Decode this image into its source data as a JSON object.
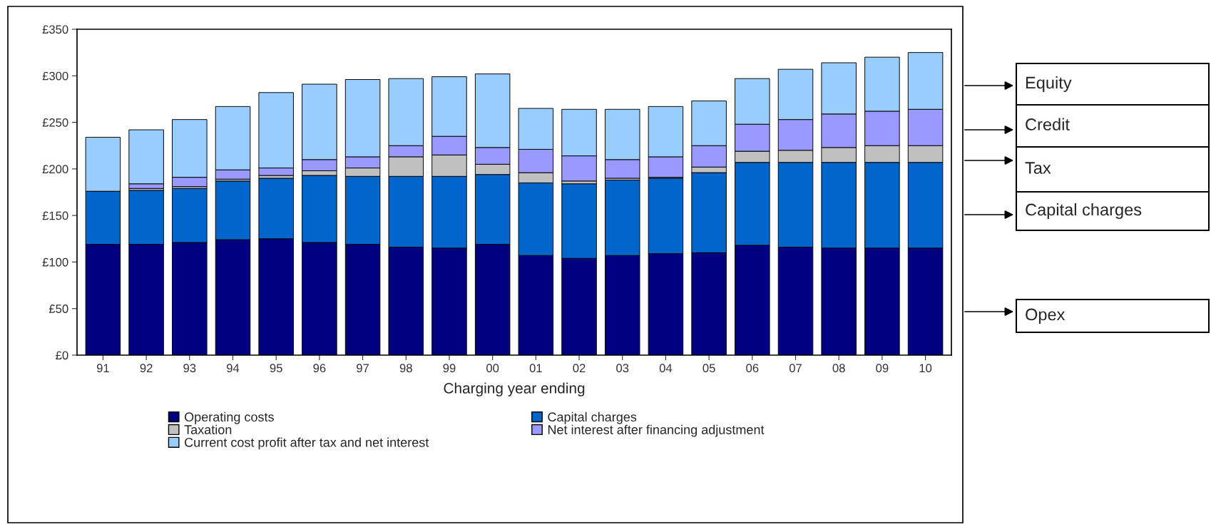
{
  "chart_data": {
    "type": "bar",
    "stacked": true,
    "xlabel": "Charging year ending",
    "categories": [
      "91",
      "92",
      "93",
      "94",
      "95",
      "96",
      "97",
      "98",
      "99",
      "00",
      "01",
      "02",
      "03",
      "04",
      "05",
      "06",
      "07",
      "08",
      "09",
      "10"
    ],
    "series": [
      {
        "name": "Operating costs",
        "color": "#000080",
        "values": [
          119,
          119,
          121,
          124,
          125,
          121,
          119,
          116,
          115,
          119,
          107,
          104,
          107,
          109,
          110,
          118,
          116,
          115,
          115,
          115
        ]
      },
      {
        "name": "Capital charges",
        "color": "#0066cc",
        "values": [
          57,
          58,
          58,
          63,
          65,
          72,
          73,
          76,
          77,
          75,
          78,
          80,
          81,
          81,
          86,
          89,
          91,
          92,
          92,
          92
        ]
      },
      {
        "name": "Taxation",
        "color": "#c0c0c0",
        "values": [
          0,
          2,
          2,
          2,
          3,
          5,
          9,
          21,
          23,
          11,
          11,
          3,
          2,
          1,
          6,
          12,
          13,
          16,
          18,
          18
        ]
      },
      {
        "name": "Net interest after financing adjustment",
        "color": "#9999ff",
        "values": [
          0,
          5,
          10,
          10,
          8,
          12,
          12,
          12,
          20,
          18,
          25,
          27,
          20,
          22,
          23,
          29,
          33,
          36,
          37,
          39
        ]
      },
      {
        "name": "Current cost profit after tax and net interest",
        "color": "#99ccff",
        "values": [
          58,
          58,
          62,
          68,
          81,
          81,
          83,
          72,
          64,
          79,
          44,
          50,
          54,
          54,
          48,
          49,
          54,
          55,
          58,
          61
        ]
      }
    ],
    "ylim": [
      0,
      350
    ],
    "yticks": [
      {
        "value": 0,
        "label": "£0"
      },
      {
        "value": 50,
        "label": "£50"
      },
      {
        "value": 100,
        "label": "£100"
      },
      {
        "value": 150,
        "label": "£150"
      },
      {
        "value": 200,
        "label": "£200"
      },
      {
        "value": 250,
        "label": "£250"
      },
      {
        "value": 300,
        "label": "£300"
      },
      {
        "value": 350,
        "label": "£350"
      }
    ],
    "legend": "bottom",
    "annotations": [
      "Equity",
      "Credit",
      "Tax",
      "Capital charges",
      "Opex"
    ]
  }
}
